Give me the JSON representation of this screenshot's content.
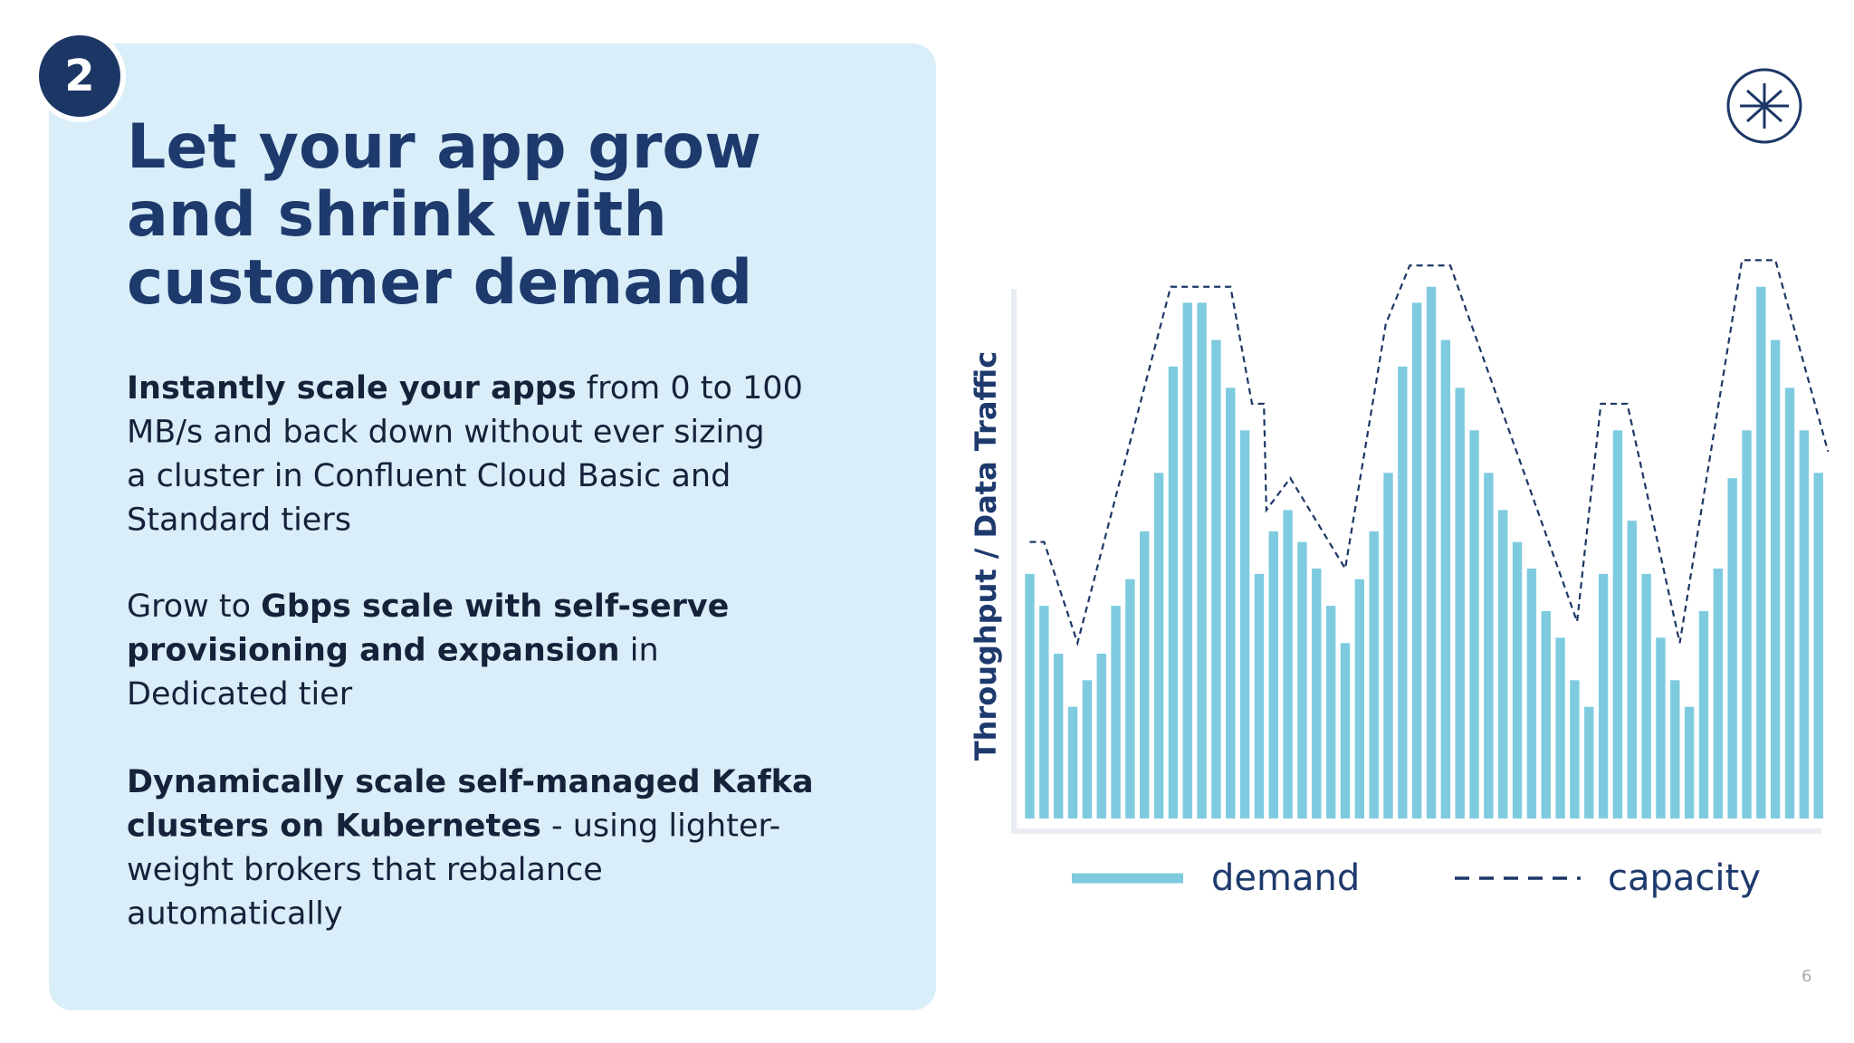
{
  "slide": {
    "number": "2",
    "title": [
      "Let your app grow",
      "and shrink with",
      "customer demand"
    ],
    "paragraphs": [
      {
        "lines": [
          [
            {
              "text": "Instantly scale your apps",
              "bold": true
            },
            {
              "text": " from 0 to 100",
              "bold": false
            }
          ],
          [
            {
              "text": "MB/s and back down without ever sizing",
              "bold": false
            }
          ],
          [
            {
              "text": "a cluster in Confluent Cloud Basic and",
              "bold": false
            }
          ],
          [
            {
              "text": "Standard tiers",
              "bold": false
            }
          ]
        ]
      },
      {
        "lines": [
          [
            {
              "text": "Grow to ",
              "bold": false
            },
            {
              "text": "Gbps scale with self-serve",
              "bold": true
            }
          ],
          [
            {
              "text": "provisioning and expansion",
              "bold": true
            },
            {
              "text": " in",
              "bold": false
            }
          ],
          [
            {
              "text": "Dedicated tier",
              "bold": false
            }
          ]
        ]
      },
      {
        "lines": [
          [
            {
              "text": "Dynamically scale self-managed Kafka",
              "bold": true
            }
          ],
          [
            {
              "text": "clusters on Kubernetes",
              "bold": true
            },
            {
              "text": " - using lighter-",
              "bold": false
            }
          ],
          [
            {
              "text": "weight brokers that rebalance",
              "bold": false
            }
          ],
          [
            {
              "text": "automatically",
              "bold": false
            }
          ]
        ]
      }
    ],
    "page_number": "6"
  },
  "chart_data": {
    "type": "bar",
    "ylabel": "Throughput / Data Traffic",
    "ylim": [
      0,
      110
    ],
    "categories": [
      null,
      null,
      null,
      null,
      null,
      null,
      null,
      null,
      null,
      null,
      null,
      null,
      null,
      null,
      null,
      null,
      null,
      null,
      null,
      null,
      null,
      null,
      null,
      null,
      null,
      null,
      null,
      null,
      null,
      null,
      null,
      null,
      null,
      null,
      null,
      null,
      null,
      null,
      null,
      null,
      null,
      null,
      null,
      null,
      null,
      null,
      null,
      null,
      null,
      null,
      null,
      null,
      null,
      null,
      null,
      null
    ],
    "series": [
      {
        "name": "demand",
        "color": "#7ecbe0",
        "values": [
          46,
          40,
          31,
          21,
          26,
          31,
          40,
          45,
          54,
          65,
          85,
          97,
          97,
          90,
          81,
          73,
          46,
          54,
          58,
          52,
          47,
          40,
          33,
          45,
          54,
          65,
          85,
          97,
          100,
          90,
          81,
          73,
          65,
          58,
          52,
          47,
          39,
          34,
          26,
          21,
          46,
          73,
          56,
          46,
          34,
          26,
          21,
          39,
          47,
          64,
          73,
          100,
          90,
          81,
          73,
          65
        ]
      },
      {
        "name": "capacity",
        "color": "#1c3766",
        "dashed": true,
        "x": [
          0,
          1,
          3.33,
          9.83,
          14,
          15.5,
          16.33,
          16.5,
          18.17,
          22,
          24.83,
          26.5,
          29.33,
          38.17,
          39.83,
          41.67,
          45.33,
          49.67,
          52,
          55.67
        ],
        "values": [
          52,
          52,
          33,
          100,
          100,
          78,
          78,
          58,
          64,
          47,
          93,
          104,
          104,
          37,
          78,
          78,
          33,
          105,
          105,
          69
        ]
      }
    ]
  }
}
